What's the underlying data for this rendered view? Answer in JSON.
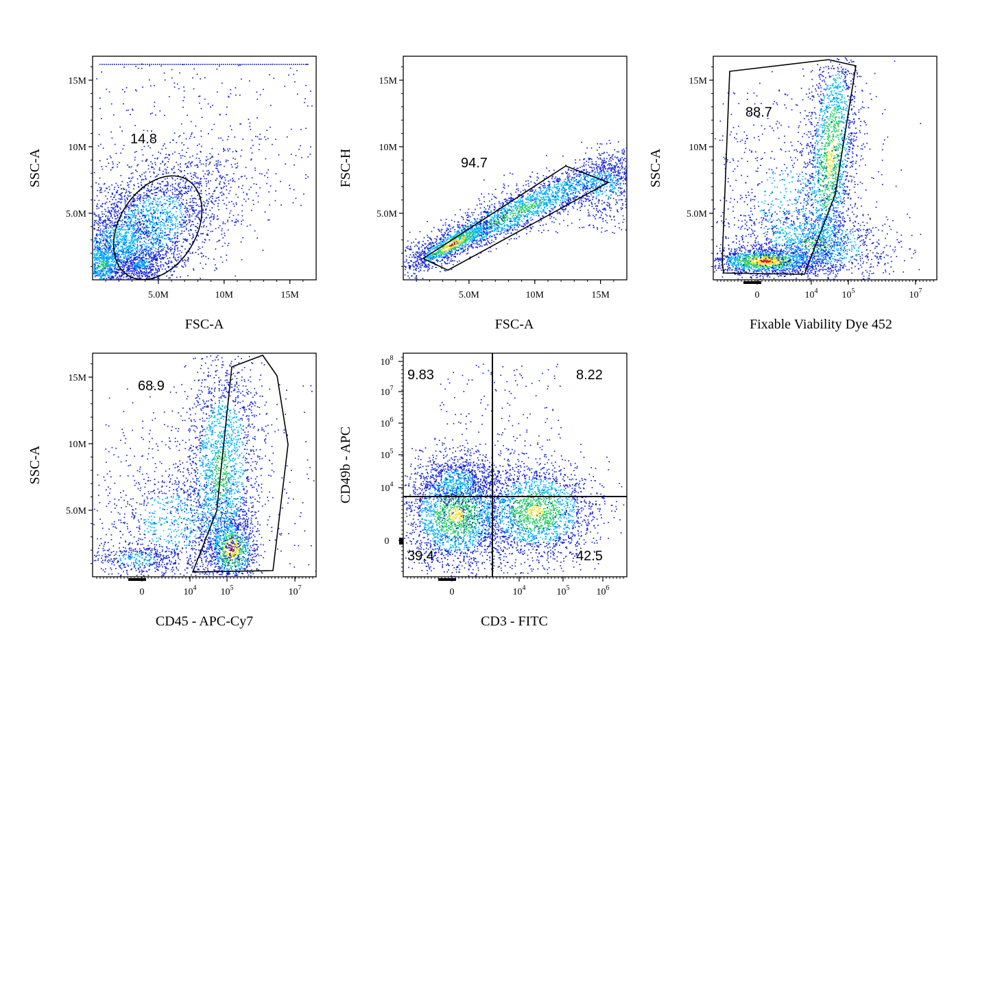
{
  "colors": {
    "low": "#1020e0",
    "mid_low": "#00b4ff",
    "mid": "#20d060",
    "mid_high": "#f0e020",
    "high": "#e01010",
    "gate": "#000000"
  },
  "chart_data": [
    {
      "type": "scatter",
      "subtype": "flow-cytometry-density",
      "xlabel": "FSC-A",
      "ylabel": "SSC-A",
      "x_scale": "linear",
      "y_scale": "linear",
      "xlim": [
        0,
        17000000
      ],
      "ylim": [
        0,
        16800000
      ],
      "x_ticks": [
        {
          "v": 5000000,
          "label": "5.0M"
        },
        {
          "v": 10000000,
          "label": "10M"
        },
        {
          "v": 15000000,
          "label": "15M"
        }
      ],
      "y_ticks": [
        {
          "v": 5000000,
          "label": "5.0M"
        },
        {
          "v": 10000000,
          "label": "10M"
        },
        {
          "v": 15000000,
          "label": "15M"
        }
      ],
      "gate": {
        "shape": "ellipse",
        "percent": "14.8"
      },
      "annotations": [
        {
          "text": "14.8"
        }
      ]
    },
    {
      "type": "scatter",
      "subtype": "flow-cytometry-density",
      "xlabel": "FSC-A",
      "ylabel": "FSC-H",
      "x_scale": "linear",
      "y_scale": "linear",
      "xlim": [
        0,
        17000000
      ],
      "ylim": [
        0,
        16800000
      ],
      "x_ticks": [
        {
          "v": 5000000,
          "label": "5.0M"
        },
        {
          "v": 10000000,
          "label": "10M"
        },
        {
          "v": 15000000,
          "label": "15M"
        }
      ],
      "y_ticks": [
        {
          "v": 5000000,
          "label": "5.0M"
        },
        {
          "v": 10000000,
          "label": "10M"
        },
        {
          "v": 15000000,
          "label": "15M"
        }
      ],
      "gate": {
        "shape": "polygon",
        "percent": "94.7"
      },
      "annotations": [
        {
          "text": "94.7"
        }
      ]
    },
    {
      "type": "scatter",
      "subtype": "flow-cytometry-density",
      "xlabel": "Fixable Viability Dye 452",
      "ylabel": "SSC-A",
      "x_scale": "biexponential",
      "y_scale": "linear",
      "ylim": [
        0,
        16800000
      ],
      "x_ticks": [
        {
          "base": "0",
          "exp": ""
        },
        {
          "base": "10",
          "exp": "4"
        },
        {
          "base": "10",
          "exp": "5"
        },
        {
          "base": "10",
          "exp": "7"
        }
      ],
      "y_ticks": [
        {
          "v": 5000000,
          "label": "5.0M"
        },
        {
          "v": 10000000,
          "label": "10M"
        },
        {
          "v": 15000000,
          "label": "15M"
        }
      ],
      "gate": {
        "shape": "polygon",
        "percent": "88.7"
      },
      "annotations": [
        {
          "text": "88.7"
        }
      ]
    },
    {
      "type": "scatter",
      "subtype": "flow-cytometry-density",
      "xlabel": "CD45 - APC-Cy7",
      "ylabel": "SSC-A",
      "x_scale": "biexponential",
      "y_scale": "linear",
      "ylim": [
        0,
        16800000
      ],
      "x_ticks": [
        {
          "base": "0",
          "exp": ""
        },
        {
          "base": "10",
          "exp": "4"
        },
        {
          "base": "10",
          "exp": "5"
        },
        {
          "base": "10",
          "exp": "7"
        }
      ],
      "y_ticks": [
        {
          "v": 5000000,
          "label": "5.0M"
        },
        {
          "v": 10000000,
          "label": "10M"
        },
        {
          "v": 15000000,
          "label": "15M"
        }
      ],
      "gate": {
        "shape": "polygon",
        "percent": "68.9"
      },
      "annotations": [
        {
          "text": "68.9"
        }
      ]
    },
    {
      "type": "scatter",
      "subtype": "flow-cytometry-quadrant",
      "xlabel": "CD3 - FITC",
      "ylabel": "CD49b - APC",
      "x_scale": "biexponential",
      "y_scale": "biexponential",
      "x_ticks": [
        {
          "base": "0",
          "exp": ""
        },
        {
          "base": "10",
          "exp": "4"
        },
        {
          "base": "10",
          "exp": "5"
        },
        {
          "base": "10",
          "exp": "6"
        }
      ],
      "y_ticks": [
        {
          "base": "0",
          "exp": ""
        },
        {
          "base": "10",
          "exp": "4"
        },
        {
          "base": "10",
          "exp": "5"
        },
        {
          "base": "10",
          "exp": "6"
        },
        {
          "base": "10",
          "exp": "7"
        },
        {
          "base": "10",
          "exp": "8"
        }
      ],
      "quadrants": {
        "upper_left": "9.83",
        "upper_right": "8.22",
        "lower_left": "39.4",
        "lower_right": "42.5"
      },
      "annotations": [
        {
          "text": "9.83"
        },
        {
          "text": "8.22"
        },
        {
          "text": "39.4"
        },
        {
          "text": "42.5"
        }
      ]
    }
  ]
}
